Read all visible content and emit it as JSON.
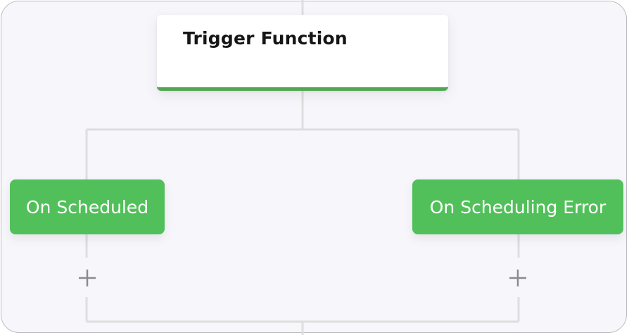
{
  "trigger": {
    "title": "Trigger Function",
    "accent_color": "#4fa84f"
  },
  "branches": [
    {
      "label": "On Scheduled",
      "color": "#52c05a"
    },
    {
      "label": "On Scheduling Error",
      "color": "#52c05a"
    }
  ],
  "add_step": {
    "icon": "plus-icon"
  },
  "colors": {
    "canvas_background": "#f7f7fb",
    "connector": "#dededf",
    "plus": "#8a8a90"
  }
}
